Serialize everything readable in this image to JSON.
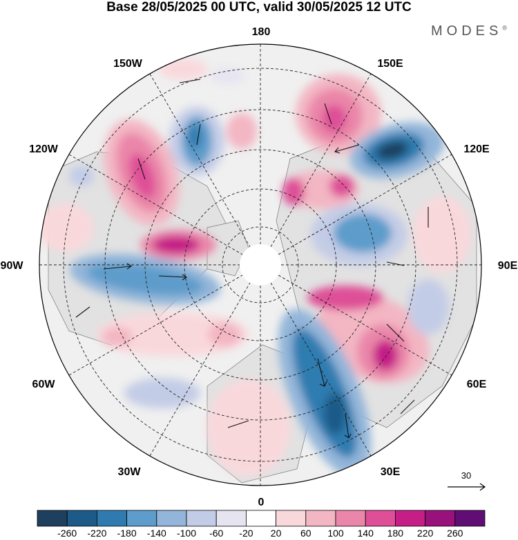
{
  "title": "Base 28/05/2025 00 UTC, valid 30/05/2025 12 UTC",
  "brand": "MODES",
  "brand_mark": "®",
  "longitude_labels": [
    {
      "id": "lon-180",
      "text": "180"
    },
    {
      "id": "lon-150e",
      "text": "150E"
    },
    {
      "id": "lon-120e",
      "text": "120E"
    },
    {
      "id": "lon-90e",
      "text": "90E"
    },
    {
      "id": "lon-60e",
      "text": "60E"
    },
    {
      "id": "lon-30e",
      "text": "30E"
    },
    {
      "id": "lon-0",
      "text": "0"
    },
    {
      "id": "lon-30w",
      "text": "30W"
    },
    {
      "id": "lon-60w",
      "text": "60W"
    },
    {
      "id": "lon-90w",
      "text": "90W"
    },
    {
      "id": "lon-120w",
      "text": "120W"
    },
    {
      "id": "lon-150w",
      "text": "150W"
    }
  ],
  "vector_reference": "30",
  "colorbar": {
    "colors": [
      "#1e3f5e",
      "#1d5a87",
      "#2f7bb0",
      "#5d9ccb",
      "#93b5d9",
      "#c3cce6",
      "#e6e4f1",
      "#ffffff",
      "#f9d8dc",
      "#f3b6c3",
      "#ea86a9",
      "#de4f97",
      "#c51f87",
      "#99127c",
      "#600e73"
    ],
    "tick_labels": [
      "-260",
      "-220",
      "-180",
      "-140",
      "-100",
      "-60",
      "-20",
      "20",
      "60",
      "100",
      "140",
      "180",
      "220",
      "260"
    ]
  },
  "colors": {
    "positive_strong": "#d9449a",
    "positive_mid": "#ec8fb4",
    "positive_weak": "#f7c6d2",
    "negative_strong": "#2f6f9f",
    "negative_mid": "#7aa6cf",
    "negative_weak": "#c8d2e8",
    "land": "#e8e8e8"
  }
}
